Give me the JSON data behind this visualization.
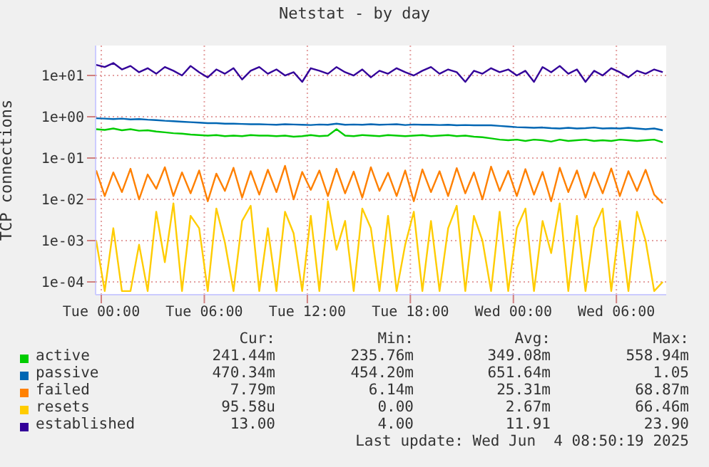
{
  "chart_data": {
    "type": "line",
    "title": "Netstat - by day",
    "ylabel": "TCP connections",
    "log": "y",
    "grid": true,
    "legend": "bottom",
    "marker": "none",
    "line_style": "solid",
    "xlim": [
      "2025-06-02T23:40",
      "2025-06-04T08:54"
    ],
    "xticks": [
      {
        "value": "2025-06-03T00:00",
        "label": "Tue 00:00"
      },
      {
        "value": "2025-06-03T06:00",
        "label": "Tue 06:00"
      },
      {
        "value": "2025-06-03T12:00",
        "label": "Tue 12:00"
      },
      {
        "value": "2025-06-03T18:00",
        "label": "Tue 18:00"
      },
      {
        "value": "2025-06-04T00:00",
        "label": "Wed 00:00"
      },
      {
        "value": "2025-06-04T06:00",
        "label": "Wed 06:00"
      }
    ],
    "ylim": [
      4.9e-05,
      53
    ],
    "yticks": [
      {
        "value": 0.0001,
        "label": "1e-04"
      },
      {
        "value": 0.001,
        "label": "1e-03"
      },
      {
        "value": 0.01,
        "label": "1e-02"
      },
      {
        "value": 0.1,
        "label": "1e-01"
      },
      {
        "value": 1,
        "label": "1e+00"
      },
      {
        "value": 10,
        "label": "1e+01"
      }
    ],
    "x": [
      "2025-06-02T23:42",
      "2025-06-03T00:12",
      "2025-06-03T00:42",
      "2025-06-03T01:12",
      "2025-06-03T01:42",
      "2025-06-03T02:12",
      "2025-06-03T02:42",
      "2025-06-03T03:12",
      "2025-06-03T03:42",
      "2025-06-03T04:12",
      "2025-06-03T04:42",
      "2025-06-03T05:12",
      "2025-06-03T05:42",
      "2025-06-03T06:12",
      "2025-06-03T06:42",
      "2025-06-03T07:12",
      "2025-06-03T07:42",
      "2025-06-03T08:12",
      "2025-06-03T08:42",
      "2025-06-03T09:12",
      "2025-06-03T09:42",
      "2025-06-03T10:12",
      "2025-06-03T10:42",
      "2025-06-03T11:12",
      "2025-06-03T11:42",
      "2025-06-03T12:12",
      "2025-06-03T12:42",
      "2025-06-03T13:12",
      "2025-06-03T13:42",
      "2025-06-03T14:12",
      "2025-06-03T14:42",
      "2025-06-03T15:12",
      "2025-06-03T15:42",
      "2025-06-03T16:12",
      "2025-06-03T16:42",
      "2025-06-03T17:12",
      "2025-06-03T17:42",
      "2025-06-03T18:12",
      "2025-06-03T18:42",
      "2025-06-03T19:12",
      "2025-06-03T19:42",
      "2025-06-03T20:12",
      "2025-06-03T20:42",
      "2025-06-03T21:12",
      "2025-06-03T21:42",
      "2025-06-03T22:12",
      "2025-06-03T22:42",
      "2025-06-03T23:12",
      "2025-06-03T23:42",
      "2025-06-04T00:12",
      "2025-06-04T00:42",
      "2025-06-04T01:12",
      "2025-06-04T01:42",
      "2025-06-04T02:12",
      "2025-06-04T02:42",
      "2025-06-04T03:12",
      "2025-06-04T03:42",
      "2025-06-04T04:12",
      "2025-06-04T04:42",
      "2025-06-04T05:12",
      "2025-06-04T05:42",
      "2025-06-04T06:12",
      "2025-06-04T06:42",
      "2025-06-04T07:12",
      "2025-06-04T07:42",
      "2025-06-04T08:12",
      "2025-06-04T08:42"
    ],
    "series": [
      {
        "name": "active",
        "color": "#00cc00",
        "values": [
          0.5,
          0.48,
          0.52,
          0.47,
          0.5,
          0.46,
          0.47,
          0.44,
          0.42,
          0.4,
          0.39,
          0.37,
          0.36,
          0.35,
          0.36,
          0.34,
          0.35,
          0.34,
          0.36,
          0.35,
          0.35,
          0.34,
          0.35,
          0.33,
          0.34,
          0.36,
          0.34,
          0.35,
          0.5,
          0.35,
          0.34,
          0.36,
          0.35,
          0.34,
          0.36,
          0.35,
          0.34,
          0.35,
          0.36,
          0.34,
          0.35,
          0.36,
          0.34,
          0.35,
          0.33,
          0.32,
          0.3,
          0.28,
          0.27,
          0.28,
          0.26,
          0.28,
          0.27,
          0.25,
          0.28,
          0.26,
          0.27,
          0.28,
          0.26,
          0.27,
          0.26,
          0.28,
          0.27,
          0.26,
          0.27,
          0.28,
          0.24
        ]
      },
      {
        "name": "passive",
        "color": "#0066b3",
        "values": [
          0.92,
          0.9,
          0.88,
          0.9,
          0.86,
          0.88,
          0.85,
          0.83,
          0.8,
          0.78,
          0.76,
          0.74,
          0.72,
          0.7,
          0.7,
          0.68,
          0.68,
          0.67,
          0.66,
          0.66,
          0.65,
          0.64,
          0.66,
          0.65,
          0.64,
          0.63,
          0.65,
          0.64,
          0.68,
          0.64,
          0.65,
          0.64,
          0.66,
          0.64,
          0.65,
          0.66,
          0.63,
          0.65,
          0.64,
          0.64,
          0.63,
          0.64,
          0.62,
          0.63,
          0.62,
          0.62,
          0.62,
          0.6,
          0.58,
          0.56,
          0.55,
          0.54,
          0.55,
          0.53,
          0.52,
          0.54,
          0.52,
          0.53,
          0.55,
          0.52,
          0.53,
          0.52,
          0.54,
          0.52,
          0.5,
          0.52,
          0.47
        ]
      },
      {
        "name": "failed",
        "color": "#ff8000",
        "values": [
          0.05,
          0.012,
          0.045,
          0.015,
          0.055,
          0.01,
          0.04,
          0.018,
          0.06,
          0.012,
          0.045,
          0.014,
          0.05,
          0.009,
          0.042,
          0.016,
          0.058,
          0.011,
          0.048,
          0.013,
          0.052,
          0.015,
          0.065,
          0.01,
          0.046,
          0.017,
          0.05,
          0.012,
          0.055,
          0.014,
          0.047,
          0.011,
          0.06,
          0.016,
          0.044,
          0.012,
          0.05,
          0.009,
          0.053,
          0.015,
          0.048,
          0.012,
          0.057,
          0.014,
          0.045,
          0.01,
          0.062,
          0.016,
          0.049,
          0.012,
          0.054,
          0.013,
          0.046,
          0.009,
          0.058,
          0.015,
          0.05,
          0.011,
          0.045,
          0.014,
          0.056,
          0.012,
          0.048,
          0.016,
          0.052,
          0.013,
          0.008
        ]
      },
      {
        "name": "resets",
        "color": "#ffcc00",
        "values": [
          0.001,
          6e-05,
          0.002,
          6e-05,
          6e-05,
          0.0008,
          6e-05,
          0.005,
          0.0003,
          0.008,
          6e-05,
          0.004,
          0.002,
          6e-05,
          0.006,
          0.0009,
          6e-05,
          0.003,
          0.007,
          6e-05,
          0.002,
          6e-05,
          0.005,
          0.0015,
          6e-05,
          0.004,
          6e-05,
          0.009,
          0.0006,
          0.003,
          6e-05,
          0.006,
          0.002,
          6e-05,
          0.004,
          6e-05,
          0.0008,
          0.005,
          6e-05,
          0.003,
          6e-05,
          0.002,
          0.007,
          6e-05,
          0.004,
          0.001,
          6e-05,
          0.005,
          6e-05,
          0.002,
          0.006,
          6e-05,
          0.003,
          0.0005,
          0.008,
          6e-05,
          0.004,
          6e-05,
          0.002,
          0.006,
          6e-05,
          0.003,
          6e-05,
          0.005,
          0.001,
          6e-05,
          0.0001
        ]
      },
      {
        "name": "established",
        "color": "#330099",
        "values": [
          18,
          16,
          20,
          14,
          17,
          12,
          15,
          11,
          16,
          13,
          10,
          17,
          12,
          9,
          14,
          11,
          15,
          8,
          13,
          16,
          11,
          14,
          10,
          12,
          7,
          15,
          13,
          11,
          16,
          12,
          10,
          14,
          9,
          13,
          11,
          15,
          12,
          10,
          13,
          16,
          11,
          14,
          12,
          7,
          13,
          11,
          15,
          12,
          14,
          10,
          13,
          7,
          16,
          12,
          17,
          11,
          14,
          7,
          13,
          10,
          15,
          12,
          9,
          13,
          11,
          14,
          12
        ]
      }
    ],
    "annotations": [
      "Cur:",
      "Min:",
      "Avg:",
      "Max:",
      "241.44m",
      "235.76m",
      "349.08m",
      "558.94m",
      "470.34m",
      "454.20m",
      "651.64m",
      "1.05",
      "7.79m",
      "6.14m",
      "25.31m",
      "68.87m",
      "95.58u",
      "0.00",
      "2.67m",
      "66.46m",
      "13.00",
      "4.00",
      "11.91",
      "23.90",
      "Last update: Wed Jun  4 08:50:19 2025"
    ]
  }
}
